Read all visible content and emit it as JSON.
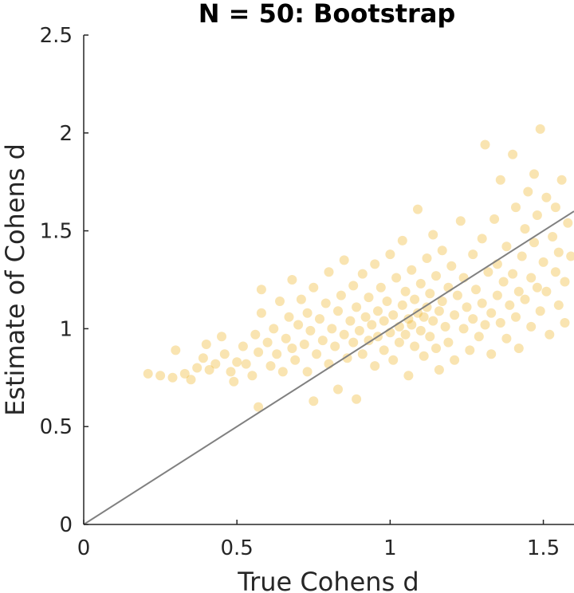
{
  "chart_data": {
    "type": "scatter",
    "title": "N = 50: Bootstrap",
    "xlabel": "True Cohens d",
    "ylabel": "Estimate of Cohens d",
    "xlim": [
      0,
      1.6
    ],
    "ylim": [
      0,
      2.5
    ],
    "xticks": [
      "0",
      "0.5",
      "1",
      "1.5"
    ],
    "yticks": [
      "0",
      "0.5",
      "1",
      "1.5",
      "2",
      "2.5"
    ],
    "grid": false,
    "legend": "none",
    "point_color": "#EDB120",
    "line_color": "#808080",
    "reference_line": {
      "x": [
        0,
        1.6
      ],
      "y": [
        0,
        1.6
      ]
    },
    "series": [
      {
        "points": [
          [
            0.21,
            0.77
          ],
          [
            0.25,
            0.76
          ],
          [
            0.29,
            0.75
          ],
          [
            0.3,
            0.89
          ],
          [
            0.33,
            0.77
          ],
          [
            0.35,
            0.74
          ],
          [
            0.37,
            0.8
          ],
          [
            0.39,
            0.85
          ],
          [
            0.4,
            0.92
          ],
          [
            0.41,
            0.79
          ],
          [
            0.43,
            0.82
          ],
          [
            0.45,
            0.96
          ],
          [
            0.46,
            0.87
          ],
          [
            0.48,
            0.78
          ],
          [
            0.49,
            0.73
          ],
          [
            0.5,
            0.83
          ],
          [
            0.52,
            0.91
          ],
          [
            0.53,
            0.82
          ],
          [
            0.55,
            0.76
          ],
          [
            0.56,
            0.97
          ],
          [
            0.57,
            0.6
          ],
          [
            0.57,
            0.88
          ],
          [
            0.58,
            1.08
          ],
          [
            0.58,
            1.2
          ],
          [
            0.6,
            0.93
          ],
          [
            0.61,
            0.81
          ],
          [
            0.62,
            1.0
          ],
          [
            0.63,
            0.87
          ],
          [
            0.64,
            1.14
          ],
          [
            0.65,
            0.78
          ],
          [
            0.66,
            0.95
          ],
          [
            0.67,
            1.06
          ],
          [
            0.68,
            0.9
          ],
          [
            0.68,
            1.25
          ],
          [
            0.69,
            0.84
          ],
          [
            0.7,
            1.02
          ],
          [
            0.71,
            1.15
          ],
          [
            0.72,
            0.92
          ],
          [
            0.73,
            0.78
          ],
          [
            0.73,
            1.08
          ],
          [
            0.74,
            0.99
          ],
          [
            0.75,
            0.63
          ],
          [
            0.75,
            1.21
          ],
          [
            0.76,
            0.87
          ],
          [
            0.77,
            1.05
          ],
          [
            0.78,
            0.94
          ],
          [
            0.79,
            1.13
          ],
          [
            0.8,
            0.82
          ],
          [
            0.8,
            1.29
          ],
          [
            0.81,
            1.0
          ],
          [
            0.82,
            0.91
          ],
          [
            0.83,
            1.09
          ],
          [
            0.83,
            0.69
          ],
          [
            0.84,
            1.17
          ],
          [
            0.85,
            0.97
          ],
          [
            0.85,
            1.35
          ],
          [
            0.86,
            0.85
          ],
          [
            0.87,
            1.04
          ],
          [
            0.88,
            0.93
          ],
          [
            0.88,
            1.22
          ],
          [
            0.89,
            0.64
          ],
          [
            0.89,
            1.11
          ],
          [
            0.9,
            0.99
          ],
          [
            0.91,
            0.87
          ],
          [
            0.91,
            1.28
          ],
          [
            0.92,
            1.06
          ],
          [
            0.93,
            0.94
          ],
          [
            0.93,
            1.16
          ],
          [
            0.94,
            1.02
          ],
          [
            0.95,
            0.81
          ],
          [
            0.95,
            1.33
          ],
          [
            0.96,
            1.09
          ],
          [
            0.96,
            0.96
          ],
          [
            0.97,
            1.21
          ],
          [
            0.98,
            0.89
          ],
          [
            0.98,
            1.04
          ],
          [
            0.99,
            1.14
          ],
          [
            1.0,
            0.98
          ],
          [
            1.0,
            1.38
          ],
          [
            1.01,
            1.07
          ],
          [
            1.01,
            0.84
          ],
          [
            1.02,
            1.26
          ],
          [
            1.03,
            1.01
          ],
          [
            1.03,
            0.93
          ],
          [
            1.04,
            1.12
          ],
          [
            1.04,
            1.45
          ],
          [
            1.05,
            0.97
          ],
          [
            1.05,
            1.19
          ],
          [
            1.06,
            1.05
          ],
          [
            1.06,
            0.76
          ],
          [
            1.07,
            1.3
          ],
          [
            1.07,
            1.02
          ],
          [
            1.08,
            0.91
          ],
          [
            1.08,
            1.15
          ],
          [
            1.09,
            1.08
          ],
          [
            1.09,
            1.61
          ],
          [
            1.1,
            0.99
          ],
          [
            1.1,
            1.23
          ],
          [
            1.11,
            1.06
          ],
          [
            1.11,
            0.86
          ],
          [
            1.12,
            1.36
          ],
          [
            1.12,
            1.11
          ],
          [
            1.13,
            0.96
          ],
          [
            1.13,
            1.18
          ],
          [
            1.14,
            1.04
          ],
          [
            1.14,
            1.48
          ],
          [
            1.15,
            0.9
          ],
          [
            1.15,
            1.27
          ],
          [
            1.16,
            1.09
          ],
          [
            1.16,
            0.79
          ],
          [
            1.17,
            1.14
          ],
          [
            1.17,
            1.4
          ],
          [
            1.18,
            1.01
          ],
          [
            1.19,
            1.21
          ],
          [
            1.19,
            0.93
          ],
          [
            1.2,
            1.32
          ],
          [
            1.21,
            1.07
          ],
          [
            1.21,
            0.84
          ],
          [
            1.22,
            1.17
          ],
          [
            1.23,
            1.55
          ],
          [
            1.24,
            1.0
          ],
          [
            1.24,
            1.26
          ],
          [
            1.25,
            1.11
          ],
          [
            1.26,
            0.89
          ],
          [
            1.27,
            1.38
          ],
          [
            1.27,
            1.05
          ],
          [
            1.28,
            1.2
          ],
          [
            1.29,
            0.96
          ],
          [
            1.3,
            1.46
          ],
          [
            1.3,
            1.13
          ],
          [
            1.31,
            1.94
          ],
          [
            1.31,
            1.02
          ],
          [
            1.32,
            1.29
          ],
          [
            1.33,
            1.08
          ],
          [
            1.33,
            0.87
          ],
          [
            1.34,
            1.56
          ],
          [
            1.35,
            1.17
          ],
          [
            1.35,
            1.33
          ],
          [
            1.36,
            1.03
          ],
          [
            1.36,
            1.76
          ],
          [
            1.37,
            1.24
          ],
          [
            1.38,
            0.95
          ],
          [
            1.38,
            1.42
          ],
          [
            1.39,
            1.12
          ],
          [
            1.4,
            1.89
          ],
          [
            1.4,
            1.28
          ],
          [
            1.41,
            1.06
          ],
          [
            1.41,
            1.62
          ],
          [
            1.42,
            1.19
          ],
          [
            1.42,
            0.9
          ],
          [
            1.43,
            1.37
          ],
          [
            1.44,
            1.51
          ],
          [
            1.44,
            1.15
          ],
          [
            1.45,
            1.7
          ],
          [
            1.46,
            1.26
          ],
          [
            1.46,
            1.01
          ],
          [
            1.47,
            1.44
          ],
          [
            1.47,
            1.79
          ],
          [
            1.48,
            1.21
          ],
          [
            1.48,
            1.58
          ],
          [
            1.49,
            2.02
          ],
          [
            1.49,
            1.09
          ],
          [
            1.5,
            1.34
          ],
          [
            1.51,
            1.67
          ],
          [
            1.51,
            1.19
          ],
          [
            1.52,
            0.97
          ],
          [
            1.53,
            1.47
          ],
          [
            1.54,
            1.29
          ],
          [
            1.54,
            1.62
          ],
          [
            1.55,
            1.12
          ],
          [
            1.55,
            1.39
          ],
          [
            1.56,
            1.76
          ],
          [
            1.57,
            1.24
          ],
          [
            1.57,
            1.03
          ],
          [
            1.58,
            1.54
          ],
          [
            1.59,
            1.37
          ]
        ]
      }
    ]
  }
}
